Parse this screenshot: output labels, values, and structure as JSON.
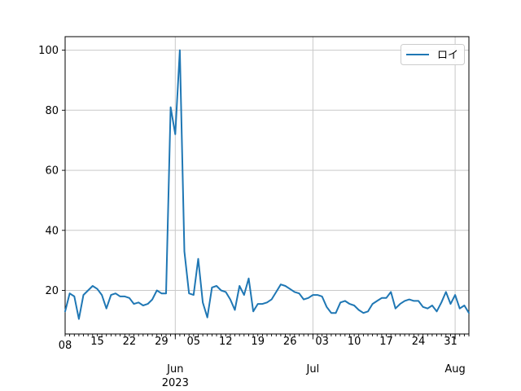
{
  "chart_data": {
    "type": "line",
    "title": "",
    "grid": true,
    "legend": {
      "position": "upper right",
      "entries": [
        "ロイ"
      ]
    },
    "series": [
      {
        "name": "ロイ",
        "color": "#1f77b4",
        "values": [
          13,
          19,
          18,
          10.5,
          18.5,
          20,
          21.5,
          20.5,
          18.5,
          14,
          18.5,
          19,
          18,
          18,
          17.5,
          15.5,
          16,
          15,
          15.5,
          17,
          20,
          19,
          19,
          81,
          72,
          100,
          33,
          19,
          18.5,
          30.5,
          16,
          11,
          21,
          21.5,
          20,
          19.5,
          17,
          13.5,
          21.5,
          18.5,
          24,
          13,
          15.5,
          15.5,
          16,
          17,
          19.5,
          22,
          21.5,
          20.5,
          19.5,
          19,
          17,
          17.5,
          18.5,
          18.5,
          18,
          14.5,
          12.5,
          12.5,
          16,
          16.5,
          15.5,
          15,
          13.5,
          12.5,
          13,
          15.5,
          16.5,
          17.5,
          17.5,
          19.5,
          14,
          15.5,
          16.5,
          17,
          16.5,
          16.5,
          14.5,
          14,
          15,
          13,
          16,
          19.5,
          15.5,
          18.5,
          14,
          15,
          12.5
        ]
      }
    ],
    "x_axis": {
      "start_date": "2023-05-08",
      "end_date": "2023-08-04",
      "frequency": "daily",
      "week_tick_labels": [
        "08",
        "15",
        "22",
        "29",
        "05",
        "12",
        "19",
        "26",
        "03",
        "10",
        "17",
        "24",
        "31"
      ],
      "week_tick_day_indices": [
        0,
        7,
        14,
        21,
        28,
        35,
        42,
        49,
        56,
        63,
        70,
        77,
        84
      ],
      "month_labels": [
        "Jun",
        "Jul",
        "Aug"
      ],
      "month_day_indices": [
        24,
        54,
        85
      ],
      "year_label": "2023"
    },
    "y_axis": {
      "tick_values": [
        20,
        40,
        60,
        80,
        100
      ],
      "tick_labels": [
        "20",
        "40",
        "60",
        "80",
        "100"
      ],
      "ylim": [
        5.5,
        104.5
      ]
    },
    "colors": {
      "line": "#1f77b4",
      "grid": "#c9c9c9",
      "axis": "#000000",
      "legend_border": "#cccccc",
      "background": "#ffffff"
    }
  }
}
